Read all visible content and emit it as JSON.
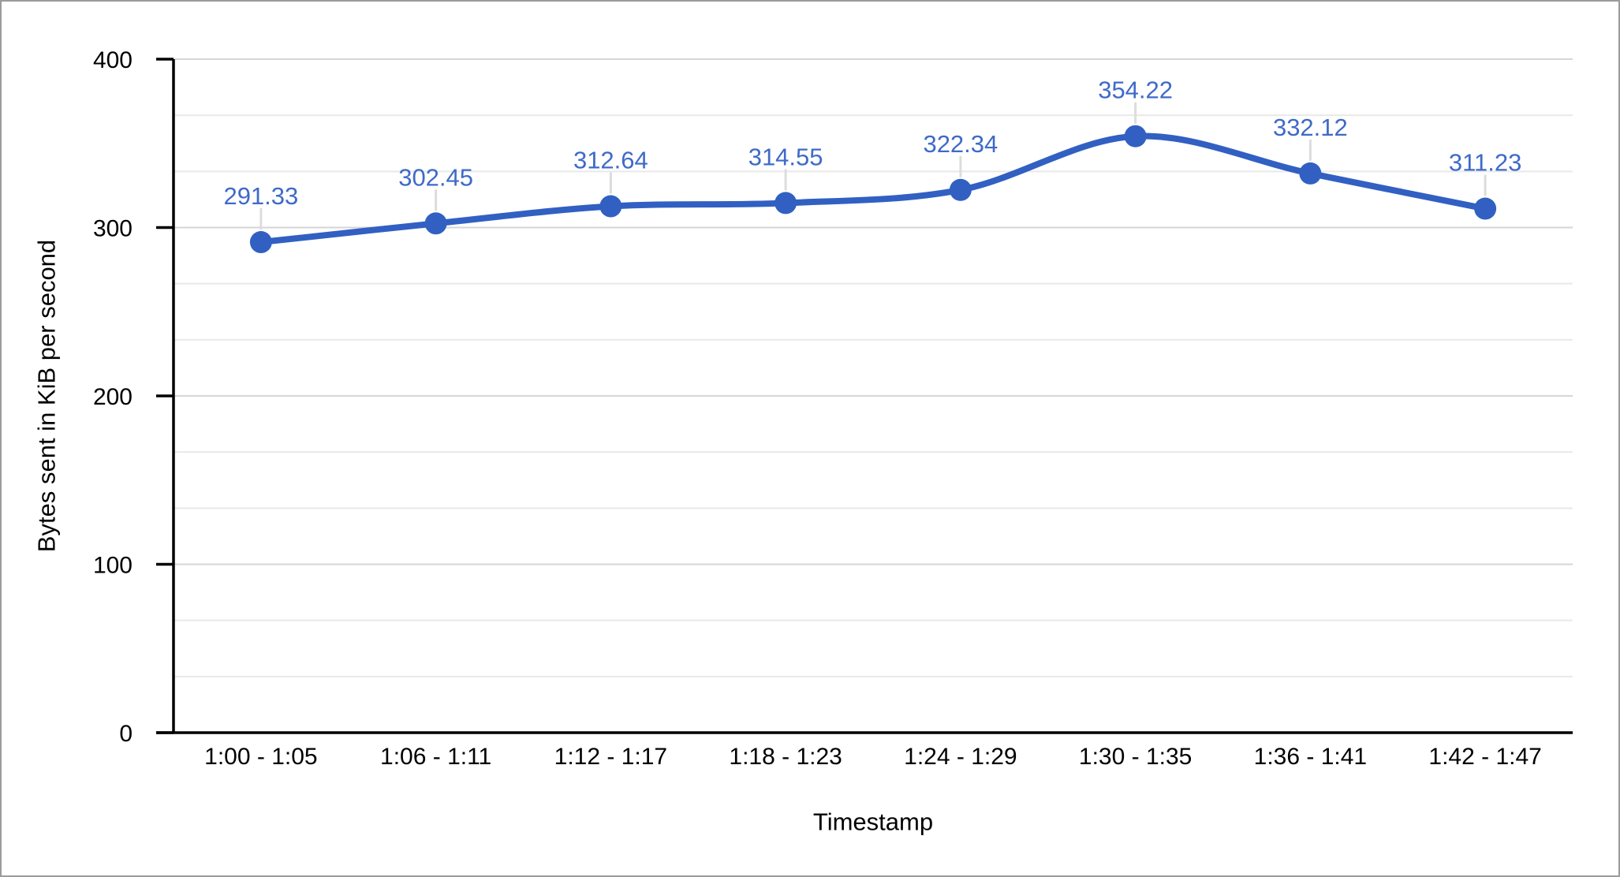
{
  "chart_data": {
    "type": "line",
    "smooth": true,
    "legend": "none",
    "categories": [
      "1:00 - 1:05",
      "1:06 - 1:11",
      "1:12 - 1:17",
      "1:18 - 1:23",
      "1:24 - 1:29",
      "1:30 - 1:35",
      "1:36 - 1:41",
      "1:42 - 1:47"
    ],
    "values": [
      291.33,
      302.45,
      312.64,
      314.55,
      322.34,
      354.22,
      332.12,
      311.23
    ],
    "data_labels": [
      "291.33",
      "302.45",
      "312.64",
      "314.55",
      "322.34",
      "354.22",
      "332.12",
      "311.23"
    ],
    "xlabel": "Timestamp",
    "ylabel": "Bytes sent in KiB per second",
    "ylim": [
      0,
      400
    ],
    "yticks": [
      0,
      100,
      200,
      300,
      400
    ],
    "ytick_labels": [
      "0",
      "100",
      "200",
      "300",
      "400"
    ],
    "minor_gridlines_between_major": 2,
    "grid": "on",
    "colors": {
      "line": "#3160c2",
      "point": "#3160c2",
      "data_label": "#3e6ac8",
      "label_leader": "#dcdcdc",
      "gridline_major": "#d6d6d6",
      "gridline_minor": "#e9e9e9",
      "axis_line": "#000000",
      "tick_label": "#000000",
      "axis_title": "#000000",
      "chart_border": "#9b9b9b",
      "background": "#ffffff"
    }
  }
}
